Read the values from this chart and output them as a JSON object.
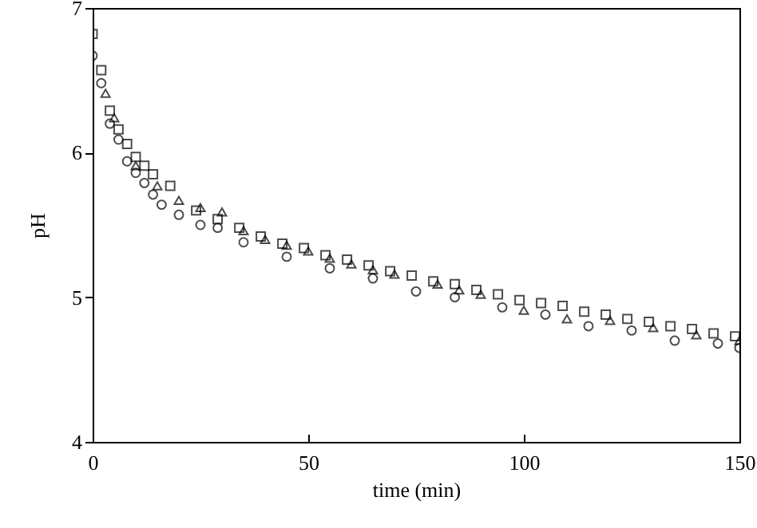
{
  "chart_data": {
    "type": "scatter",
    "xlabel": "time (min)",
    "ylabel": "pH",
    "xlim": [
      0,
      150
    ],
    "ylim": [
      4,
      7
    ],
    "xticks": [
      0,
      50,
      100,
      150
    ],
    "yticks": [
      4,
      5,
      6,
      7
    ],
    "grid": false,
    "series": [
      {
        "color": "#000000",
        "marker": "square",
        "x": [
          0,
          2,
          4,
          6,
          8,
          10,
          12,
          14,
          18,
          24,
          29,
          34,
          39,
          44,
          49,
          54,
          59,
          64,
          69,
          74,
          79,
          84,
          89,
          94,
          99,
          104,
          109,
          114,
          119,
          124,
          129,
          134,
          139,
          144,
          149
        ],
        "values": [
          6.82,
          6.57,
          6.29,
          6.16,
          6.06,
          5.97,
          5.91,
          5.85,
          5.77,
          5.6,
          5.54,
          5.48,
          5.42,
          5.37,
          5.34,
          5.29,
          5.26,
          5.22,
          5.18,
          5.15,
          5.11,
          5.09,
          5.05,
          5.02,
          4.98,
          4.96,
          4.94,
          4.9,
          4.88,
          4.85,
          4.83,
          4.8,
          4.78,
          4.75,
          4.73
        ]
      },
      {
        "color": "#000000",
        "marker": "circle",
        "x": [
          0,
          2,
          4,
          6,
          8,
          10,
          12,
          14,
          16,
          20,
          25,
          29,
          35,
          45,
          55,
          65,
          75,
          84,
          95,
          105,
          115,
          125,
          135,
          145,
          150
        ],
        "values": [
          6.67,
          6.48,
          6.2,
          6.09,
          5.94,
          5.86,
          5.79,
          5.71,
          5.64,
          5.57,
          5.5,
          5.48,
          5.38,
          5.28,
          5.2,
          5.13,
          5.04,
          5,
          4.93,
          4.88,
          4.8,
          4.77,
          4.7,
          4.68,
          4.65
        ]
      },
      {
        "color": "#000000",
        "marker": "triangle",
        "x": [
          3,
          5,
          10,
          15,
          20,
          25,
          30,
          35,
          40,
          45,
          50,
          55,
          60,
          65,
          70,
          80,
          85,
          90,
          100,
          110,
          120,
          130,
          140,
          150
        ],
        "values": [
          6.41,
          6.24,
          5.91,
          5.77,
          5.67,
          5.62,
          5.59,
          5.46,
          5.4,
          5.36,
          5.32,
          5.27,
          5.23,
          5.19,
          5.16,
          5.09,
          5.05,
          5.02,
          4.91,
          4.85,
          4.84,
          4.79,
          4.74,
          4.7
        ]
      }
    ]
  }
}
